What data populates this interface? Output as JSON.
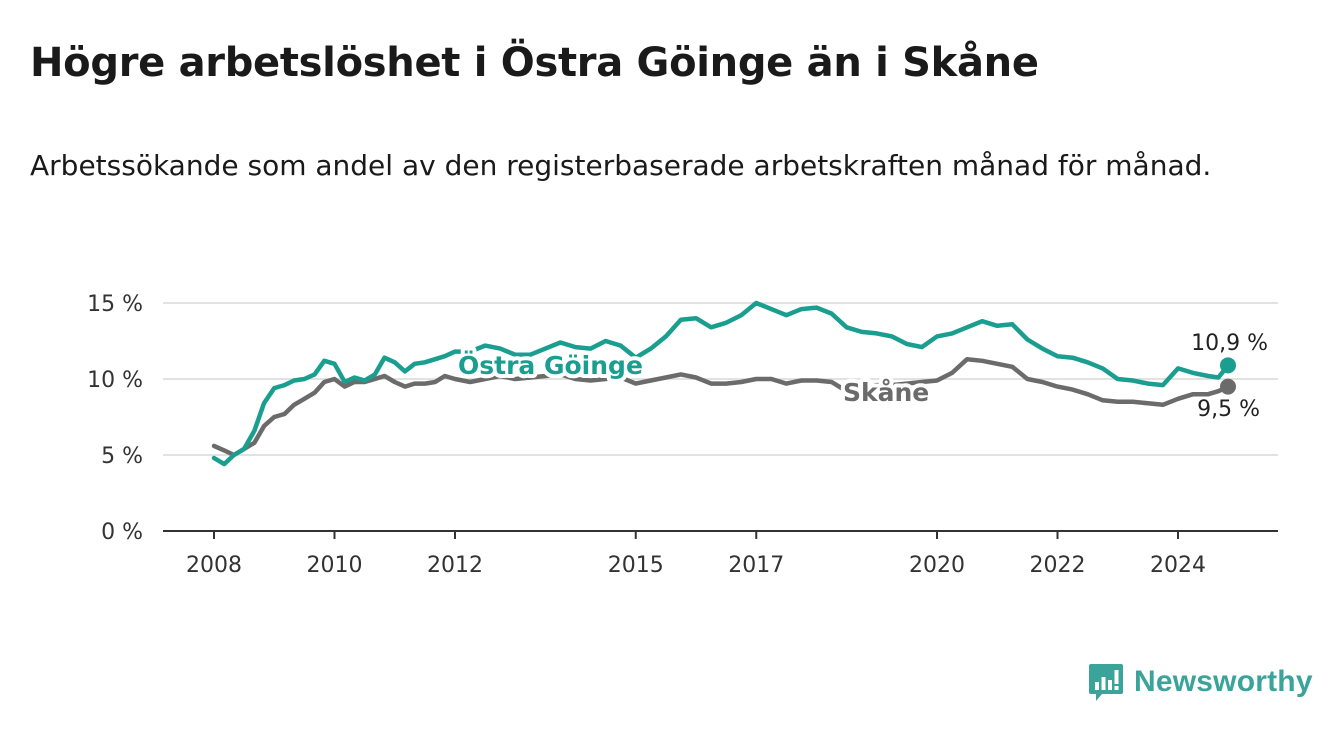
{
  "header": {
    "title": "Högre arbetslöshet i Östra Göinge än i Skåne",
    "subtitle": "Arbetssökande som andel av den registerbaserade arbetskraften månad för månad."
  },
  "branding": {
    "name": "Newsworthy",
    "icon": "newsworthy-logo-icon",
    "color": "#3aa39a"
  },
  "chart_data": {
    "type": "line",
    "title": "Högre arbetslöshet i Östra Göinge än i Skåne",
    "subtitle": "Arbetssökande som andel av den registerbaserade arbetskraften månad för månad.",
    "xlabel": "",
    "ylabel": "",
    "ylim": [
      0,
      15
    ],
    "yticks": [
      0,
      5,
      10,
      15
    ],
    "ytick_labels": [
      "0 %",
      "5 %",
      "10 %",
      "15 %"
    ],
    "xlim": [
      2008.0,
      2024.83
    ],
    "xticks": [
      2008,
      2010,
      2012,
      2015,
      2017,
      2020,
      2022,
      2024
    ],
    "xtick_labels": [
      "2008",
      "2010",
      "2012",
      "2015",
      "2017",
      "2020",
      "2022",
      "2024"
    ],
    "grid": true,
    "legend": "inline labels",
    "series": [
      {
        "name": "Östra Göinge",
        "color": "#1a9e8f",
        "end_label": "10,9 %",
        "x": [
          2008.0,
          2008.17,
          2008.33,
          2008.5,
          2008.67,
          2008.83,
          2009.0,
          2009.17,
          2009.33,
          2009.5,
          2009.67,
          2009.83,
          2010.0,
          2010.17,
          2010.33,
          2010.5,
          2010.67,
          2010.83,
          2011.0,
          2011.17,
          2011.33,
          2011.5,
          2011.67,
          2011.83,
          2012.0,
          2012.25,
          2012.5,
          2012.75,
          2013.0,
          2013.25,
          2013.5,
          2013.75,
          2014.0,
          2014.25,
          2014.5,
          2014.75,
          2015.0,
          2015.25,
          2015.5,
          2015.75,
          2016.0,
          2016.25,
          2016.5,
          2016.75,
          2017.0,
          2017.25,
          2017.5,
          2017.75,
          2018.0,
          2018.25,
          2018.5,
          2018.75,
          2019.0,
          2019.25,
          2019.5,
          2019.75,
          2020.0,
          2020.25,
          2020.5,
          2020.75,
          2021.0,
          2021.25,
          2021.5,
          2021.75,
          2022.0,
          2022.25,
          2022.5,
          2022.75,
          2023.0,
          2023.25,
          2023.5,
          2023.75,
          2024.0,
          2024.25,
          2024.5,
          2024.67,
          2024.83
        ],
        "values": [
          4.8,
          4.4,
          5.0,
          5.4,
          6.6,
          8.4,
          9.4,
          9.6,
          9.9,
          10.0,
          10.3,
          11.2,
          11.0,
          9.8,
          10.1,
          9.9,
          10.3,
          11.4,
          11.1,
          10.5,
          11.0,
          11.1,
          11.3,
          11.5,
          11.8,
          11.8,
          12.2,
          12.0,
          11.6,
          11.6,
          12.0,
          12.4,
          12.1,
          12.0,
          12.5,
          12.2,
          11.4,
          12.0,
          12.8,
          13.9,
          14.0,
          13.4,
          13.7,
          14.2,
          15.0,
          14.6,
          14.2,
          14.6,
          14.7,
          14.3,
          13.4,
          13.1,
          13.0,
          12.8,
          12.3,
          12.1,
          12.8,
          13.0,
          13.4,
          13.8,
          13.5,
          13.6,
          12.6,
          12.0,
          11.5,
          11.4,
          11.1,
          10.7,
          10.0,
          9.9,
          9.7,
          9.6,
          10.7,
          10.4,
          10.2,
          10.1,
          10.9
        ]
      },
      {
        "name": "Skåne",
        "color": "#6b6b6b",
        "end_label": "9,5 %",
        "x": [
          2008.0,
          2008.17,
          2008.33,
          2008.5,
          2008.67,
          2008.83,
          2009.0,
          2009.17,
          2009.33,
          2009.5,
          2009.67,
          2009.83,
          2010.0,
          2010.17,
          2010.33,
          2010.5,
          2010.67,
          2010.83,
          2011.0,
          2011.17,
          2011.33,
          2011.5,
          2011.67,
          2011.83,
          2012.0,
          2012.25,
          2012.5,
          2012.75,
          2013.0,
          2013.25,
          2013.5,
          2013.75,
          2014.0,
          2014.25,
          2014.5,
          2014.75,
          2015.0,
          2015.25,
          2015.5,
          2015.75,
          2016.0,
          2016.25,
          2016.5,
          2016.75,
          2017.0,
          2017.25,
          2017.5,
          2017.75,
          2018.0,
          2018.25,
          2018.5,
          2018.75,
          2019.0,
          2019.25,
          2019.5,
          2019.75,
          2020.0,
          2020.25,
          2020.5,
          2020.75,
          2021.0,
          2021.25,
          2021.5,
          2021.75,
          2022.0,
          2022.25,
          2022.5,
          2022.75,
          2023.0,
          2023.25,
          2023.5,
          2023.75,
          2024.0,
          2024.25,
          2024.5,
          2024.67,
          2024.83
        ],
        "values": [
          5.6,
          5.3,
          5.0,
          5.4,
          5.8,
          6.9,
          7.5,
          7.7,
          8.3,
          8.7,
          9.1,
          9.8,
          10.0,
          9.5,
          9.8,
          9.8,
          10.0,
          10.2,
          9.8,
          9.5,
          9.7,
          9.7,
          9.8,
          10.2,
          10.0,
          9.8,
          10.0,
          10.2,
          10.0,
          10.1,
          10.2,
          10.3,
          10.0,
          9.9,
          10.0,
          10.1,
          9.7,
          9.9,
          10.1,
          10.3,
          10.1,
          9.7,
          9.7,
          9.8,
          10.0,
          10.0,
          9.7,
          9.9,
          9.9,
          9.8,
          9.2,
          9.4,
          9.6,
          9.6,
          9.7,
          9.8,
          9.9,
          10.4,
          11.3,
          11.2,
          11.0,
          10.8,
          10.0,
          9.8,
          9.5,
          9.3,
          9.0,
          8.6,
          8.5,
          8.5,
          8.4,
          8.3,
          8.7,
          9.0,
          9.0,
          9.2,
          9.5
        ]
      }
    ]
  }
}
